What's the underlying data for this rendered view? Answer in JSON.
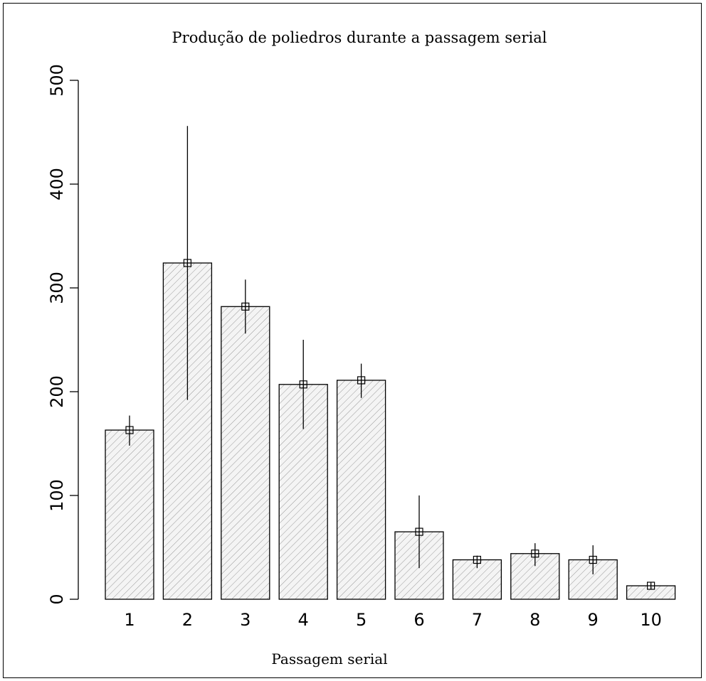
{
  "colors": {
    "background": "#ffffff",
    "bar_fill": "#f4f4f4",
    "hatch": "#9a9a9a",
    "stroke": "#000000"
  },
  "chart_data": {
    "type": "bar",
    "title": "Produção de poliedros durante a passagem serial",
    "xlabel": "Passagem serial",
    "ylabel": "",
    "categories": [
      "1",
      "2",
      "3",
      "4",
      "5",
      "6",
      "7",
      "8",
      "9",
      "10"
    ],
    "values": [
      163,
      324,
      282,
      207,
      211,
      65,
      38,
      44,
      38,
      13
    ],
    "error_low": [
      148,
      192,
      256,
      164,
      194,
      30,
      30,
      32,
      24,
      10
    ],
    "error_high": [
      177,
      456,
      308,
      250,
      227,
      100,
      42,
      54,
      52,
      16
    ],
    "ylim": [
      0,
      500
    ],
    "yticks": [
      0,
      100,
      200,
      300,
      400,
      500
    ],
    "grid": false,
    "legend": "none",
    "bar_pattern": "diagonal-hatch",
    "point_marker": "open-square"
  }
}
